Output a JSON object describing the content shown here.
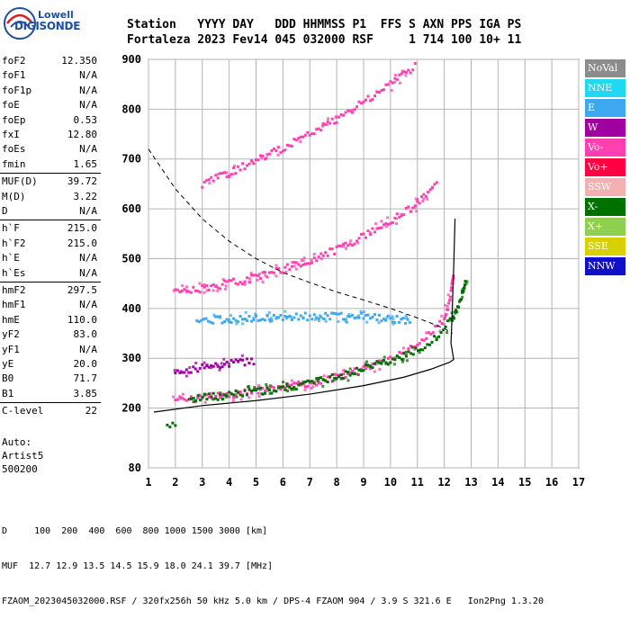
{
  "logo": {
    "line1": "Lowell",
    "line2": "DIGISONDE"
  },
  "header": {
    "line1": "Station   YYYY DAY   DDD HHMMSS P1  FFS S AXN PPS IGA PS",
    "line2": "Fortaleza 2023 Fev14 045 032000 RSF     1 714 100 10+ 11"
  },
  "params": [
    {
      "name": "foF2",
      "value": "12.350"
    },
    {
      "name": "foF1",
      "value": "N/A"
    },
    {
      "name": "foF1p",
      "value": "N/A"
    },
    {
      "name": "foE",
      "value": "N/A"
    },
    {
      "name": "foEp",
      "value": "0.53"
    },
    {
      "name": "fxI",
      "value": "12.80"
    },
    {
      "name": "foEs",
      "value": "N/A"
    },
    {
      "name": "fmin",
      "value": "1.65"
    },
    {
      "name": "MUF(D)",
      "value": "39.72"
    },
    {
      "name": "M(D)",
      "value": "3.22"
    },
    {
      "name": "D",
      "value": "N/A"
    },
    {
      "name": "h`F",
      "value": "215.0"
    },
    {
      "name": "h`F2",
      "value": "215.0"
    },
    {
      "name": "h`E",
      "value": "N/A"
    },
    {
      "name": "h`Es",
      "value": "N/A"
    },
    {
      "name": "hmF2",
      "value": "297.5"
    },
    {
      "name": "hmF1",
      "value": "N/A"
    },
    {
      "name": "hmE",
      "value": "110.0"
    },
    {
      "name": "yF2",
      "value": "83.0"
    },
    {
      "name": "yF1",
      "value": "N/A"
    },
    {
      "name": "yE",
      "value": "20.0"
    },
    {
      "name": "B0",
      "value": "71.7"
    },
    {
      "name": "B1",
      "value": "3.85"
    },
    {
      "name": "C-level",
      "value": "22"
    }
  ],
  "auto": {
    "line1": "Auto:",
    "line2": "Artist5",
    "line3": "500200"
  },
  "legend": [
    {
      "label": "NoVal",
      "color": "#8c8c8c"
    },
    {
      "label": "NNE",
      "color": "#22d8f0"
    },
    {
      "label": "E",
      "color": "#3ba8f0"
    },
    {
      "label": "W",
      "color": "#a000a0"
    },
    {
      "label": "Vo-",
      "color": "#ff40b0"
    },
    {
      "label": "Vo+",
      "color": "#ff0040"
    },
    {
      "label": "SSW",
      "color": "#f4b0b0"
    },
    {
      "label": "X-",
      "color": "#007000"
    },
    {
      "label": "X+",
      "color": "#90d050"
    },
    {
      "label": "SSE",
      "color": "#d8d000"
    },
    {
      "label": "NNW",
      "color": "#1010c8"
    }
  ],
  "footer": {
    "line1": "D     100  200  400  600  800 1000 1500 3000 [km]",
    "line2": "MUF  12.7 12.9 13.5 14.5 15.9 18.0 24.1 39.7 [MHz]",
    "line3": "FZAOM_2023045032000.RSF / 320fx256h 50 kHz 5.0 km / DPS-4 FZAOM 904 / 3.9 S 321.6 E   Ion2Png 1.3.20"
  },
  "chart_data": {
    "type": "scatter",
    "title": "",
    "xlabel": "",
    "ylabel": "",
    "xlim": [
      1,
      17
    ],
    "ylim": [
      80,
      900
    ],
    "x_ticks": [
      "1",
      "2",
      "3",
      "4",
      "5",
      "6",
      "7",
      "8",
      "9",
      "10",
      "11",
      "12",
      "13",
      "14",
      "15",
      "16",
      "17"
    ],
    "y_ticks": [
      "80",
      "200",
      "300",
      "400",
      "500",
      "600",
      "700",
      "800",
      "900"
    ],
    "y_tick_values": [
      80,
      200,
      300,
      400,
      500,
      600,
      700,
      800,
      900
    ],
    "grid": true,
    "traces": [
      {
        "name": "O-trace F2",
        "color": "#ff40b0",
        "points": [
          [
            2.0,
            216
          ],
          [
            3.0,
            220
          ],
          [
            4.0,
            226
          ],
          [
            5.0,
            232
          ],
          [
            6.0,
            240
          ],
          [
            7.0,
            250
          ],
          [
            8.0,
            262
          ],
          [
            9.0,
            278
          ],
          [
            10.0,
            298
          ],
          [
            10.5,
            310
          ],
          [
            11.0,
            326
          ],
          [
            11.5,
            348
          ],
          [
            12.0,
            380
          ],
          [
            12.2,
            410
          ],
          [
            12.3,
            450
          ],
          [
            12.35,
            470
          ]
        ]
      },
      {
        "name": "X-trace F2",
        "color": "#007000",
        "points": [
          [
            2.6,
            218
          ],
          [
            3.5,
            223
          ],
          [
            4.5,
            229
          ],
          [
            5.5,
            236
          ],
          [
            6.5,
            245
          ],
          [
            7.5,
            256
          ],
          [
            8.5,
            270
          ],
          [
            9.5,
            288
          ],
          [
            10.5,
            304
          ],
          [
            11.2,
            322
          ],
          [
            11.8,
            345
          ],
          [
            12.3,
            380
          ],
          [
            12.5,
            400
          ],
          [
            12.7,
            430
          ],
          [
            12.8,
            460
          ]
        ]
      },
      {
        "name": "Second hop",
        "color": "#ff40b0",
        "points": [
          [
            2.0,
            432
          ],
          [
            3.0,
            440
          ],
          [
            4.0,
            450
          ],
          [
            5.0,
            462
          ],
          [
            6.0,
            478
          ],
          [
            7.0,
            496
          ],
          [
            8.0,
            518
          ],
          [
            9.0,
            545
          ],
          [
            10.0,
            575
          ],
          [
            11.0,
            610
          ],
          [
            11.8,
            650
          ]
        ]
      },
      {
        "name": "Third hop",
        "color": "#ff40b0",
        "points": [
          [
            3.0,
            650
          ],
          [
            4.0,
            672
          ],
          [
            5.0,
            696
          ],
          [
            6.0,
            722
          ],
          [
            7.0,
            750
          ],
          [
            8.0,
            780
          ],
          [
            9.0,
            815
          ],
          [
            10.0,
            850
          ],
          [
            11.0,
            890
          ]
        ]
      },
      {
        "name": "Es layer",
        "color": "#3ba8f0",
        "points": [
          [
            2.8,
            375
          ],
          [
            4.0,
            378
          ],
          [
            5.0,
            380
          ],
          [
            6.0,
            382
          ],
          [
            7.0,
            384
          ],
          [
            8.0,
            385
          ],
          [
            9.0,
            383
          ],
          [
            10.0,
            380
          ],
          [
            10.8,
            372
          ]
        ]
      },
      {
        "name": "Lower spread",
        "color": "#a000a0",
        "points": [
          [
            2.0,
            272
          ],
          [
            3.0,
            280
          ],
          [
            4.0,
            288
          ],
          [
            5.0,
            296
          ]
        ]
      }
    ],
    "profile": {
      "color": "#000000",
      "points": [
        [
          1.2,
          192
        ],
        [
          3.0,
          205
        ],
        [
          5.0,
          215
        ],
        [
          7.0,
          228
        ],
        [
          9.0,
          245
        ],
        [
          10.5,
          262
        ],
        [
          11.5,
          278
        ],
        [
          12.2,
          292
        ],
        [
          12.35,
          297.5
        ],
        [
          12.25,
          330
        ],
        [
          12.3,
          400
        ],
        [
          12.35,
          480
        ],
        [
          12.4,
          580
        ]
      ]
    },
    "dashed_curve": {
      "color": "#000000",
      "points": [
        [
          1.0,
          720
        ],
        [
          1.5,
          680
        ],
        [
          2.0,
          640
        ],
        [
          3.0,
          580
        ],
        [
          4.0,
          535
        ],
        [
          5.0,
          500
        ],
        [
          6.0,
          472
        ],
        [
          7.0,
          452
        ],
        [
          8.0,
          433
        ],
        [
          9.0,
          417
        ],
        [
          10.0,
          400
        ],
        [
          11.0,
          381
        ],
        [
          12.0,
          360
        ],
        [
          12.3,
          350
        ]
      ]
    },
    "low_echoes": {
      "color": "#007000",
      "points": [
        [
          1.7,
          166
        ],
        [
          1.8,
          162
        ],
        [
          1.9,
          170
        ],
        [
          2.0,
          165
        ]
      ]
    }
  }
}
